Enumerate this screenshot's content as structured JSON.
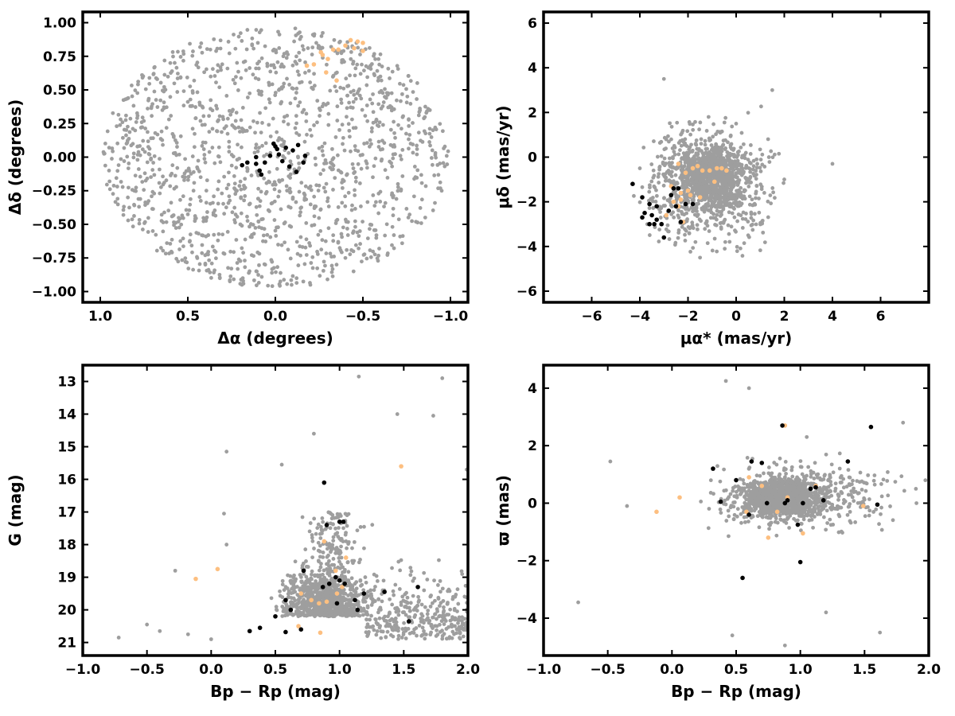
{
  "colors": {
    "background": "#9e9e9e",
    "field": "#fdbf80",
    "cluster": "#000000",
    "frame": "#000000"
  },
  "chart_data": [
    {
      "type": "scatter",
      "xlabel": "Δα (degrees)",
      "ylabel": "Δδ (degrees)",
      "xlim": [
        1.1,
        -1.1
      ],
      "ylim": [
        -1.08,
        1.08
      ],
      "xticks": [
        1.0,
        0.5,
        0.0,
        -0.5,
        -1.0
      ],
      "xtick_labels": [
        "1.0",
        "0.5",
        "0.0",
        "−0.5",
        "−1.0"
      ],
      "yticks": [
        1.0,
        0.75,
        0.5,
        0.25,
        0.0,
        -0.25,
        -0.5,
        -0.75,
        -1.0
      ],
      "ytick_labels": [
        "1.00",
        "0.75",
        "0.50",
        "0.25",
        "0.00",
        "−0.25",
        "−0.50",
        "−0.75",
        "−1.00"
      ],
      "series": [
        {
          "role": "background",
          "color": "#9e9e9e",
          "points": [
            [
              0.6,
              0.7
            ],
            [
              -0.3,
              0.4
            ],
            [
              0.2,
              -0.5
            ],
            [
              -0.7,
              -0.2
            ],
            [
              0.85,
              0.1
            ],
            [
              -0.9,
              0.2
            ],
            [
              0.4,
              -0.8
            ],
            [
              -0.4,
              -0.75
            ],
            [
              0.1,
              0.85
            ],
            [
              -0.6,
              0.6
            ],
            [
              0.7,
              -0.55
            ],
            [
              -0.2,
              -0.95
            ],
            [
              0.95,
              -0.1
            ],
            [
              -0.95,
              -0.25
            ],
            [
              0.3,
              0.3
            ],
            [
              -0.1,
              -0.3
            ]
          ]
        },
        {
          "role": "highlight",
          "color": "#fdbf80",
          "points": [
            [
              -0.43,
              0.87
            ],
            [
              -0.47,
              0.86
            ],
            [
              -0.5,
              0.85
            ],
            [
              -0.45,
              0.81
            ],
            [
              -0.5,
              0.79
            ],
            [
              -0.36,
              0.8
            ],
            [
              -0.33,
              0.8
            ],
            [
              -0.27,
              0.76
            ],
            [
              -0.3,
              0.73
            ],
            [
              -0.22,
              0.69
            ],
            [
              -0.18,
              0.68
            ],
            [
              -0.29,
              0.63
            ],
            [
              -0.35,
              0.57
            ],
            [
              -0.4,
              0.83
            ],
            [
              -0.26,
              0.78
            ]
          ]
        },
        {
          "role": "cluster",
          "color": "#000000",
          "points": [
            [
              0.19,
              -0.06
            ],
            [
              0.16,
              -0.04
            ],
            [
              0.11,
              0.0
            ],
            [
              0.11,
              -0.05
            ],
            [
              0.09,
              -0.1
            ],
            [
              0.08,
              -0.13
            ],
            [
              0.06,
              -0.04
            ],
            [
              0.01,
              0.1
            ],
            [
              0.0,
              0.08
            ],
            [
              -0.01,
              0.06
            ],
            [
              -0.02,
              0.02
            ],
            [
              -0.04,
              -0.03
            ],
            [
              -0.06,
              0.07
            ],
            [
              -0.08,
              -0.07
            ],
            [
              -0.1,
              0.05
            ],
            [
              -0.12,
              -0.11
            ],
            [
              -0.13,
              0.09
            ],
            [
              -0.16,
              -0.04
            ],
            [
              -0.17,
              0.01
            ],
            [
              0.03,
              0.01
            ]
          ]
        }
      ]
    },
    {
      "type": "scatter",
      "xlabel": "μα* (mas/yr)",
      "ylabel": "μδ (mas/yr)",
      "xlim": [
        -8,
        8
      ],
      "ylim": [
        -6.5,
        6.5
      ],
      "xticks": [
        -6,
        -4,
        -2,
        0,
        2,
        4,
        6
      ],
      "xtick_labels": [
        "−6",
        "−4",
        "−2",
        "0",
        "2",
        "4",
        "6"
      ],
      "yticks": [
        6,
        4,
        2,
        0,
        -2,
        -4,
        -6
      ],
      "ytick_labels": [
        "6",
        "4",
        "2",
        "0",
        "−2",
        "−4",
        "−6"
      ],
      "series": [
        {
          "role": "background",
          "color": "#9e9e9e",
          "points": [
            [
              -1.0,
              -0.5
            ],
            [
              -2.5,
              -2.0
            ],
            [
              0.5,
              -3.5
            ],
            [
              2.0,
              -1.0
            ],
            [
              -4.0,
              -0.5
            ],
            [
              -3.0,
              3.5
            ],
            [
              1.5,
              3.0
            ],
            [
              4.0,
              -0.3
            ],
            [
              -1.5,
              -4.5
            ],
            [
              0.0,
              1.5
            ]
          ]
        },
        {
          "role": "highlight",
          "color": "#fdbf80",
          "points": [
            [
              -2.4,
              -0.3
            ],
            [
              -2.1,
              -0.7
            ],
            [
              -1.8,
              -0.5
            ],
            [
              -1.6,
              -0.4
            ],
            [
              -1.4,
              -0.6
            ],
            [
              -1.1,
              -0.6
            ],
            [
              -0.8,
              -0.5
            ],
            [
              -0.6,
              -0.5
            ],
            [
              -0.4,
              -0.6
            ],
            [
              -2.3,
              -1.6
            ],
            [
              -2.0,
              -1.5
            ],
            [
              -1.9,
              -1.7
            ],
            [
              -2.3,
              -1.9
            ],
            [
              -2.4,
              -2.2
            ],
            [
              -2.6,
              -2.0
            ],
            [
              -2.7,
              -1.3
            ],
            [
              -2.2,
              -2.9
            ],
            [
              -2.9,
              -2.6
            ],
            [
              -1.5,
              -1.8
            ],
            [
              -0.9,
              -1.1
            ]
          ]
        },
        {
          "role": "cluster",
          "color": "#000000",
          "points": [
            [
              -4.3,
              -1.2
            ],
            [
              -3.9,
              -1.8
            ],
            [
              -3.6,
              -2.1
            ],
            [
              -3.3,
              -2.2
            ],
            [
              -3.8,
              -2.5
            ],
            [
              -3.5,
              -2.6
            ],
            [
              -3.3,
              -2.8
            ],
            [
              -3.6,
              -3.0
            ],
            [
              -3.4,
              -3.0
            ],
            [
              -3.1,
              -3.0
            ],
            [
              -3.0,
              -3.6
            ],
            [
              -2.8,
              -2.4
            ],
            [
              -2.7,
              -1.7
            ],
            [
              -2.6,
              -1.4
            ],
            [
              -2.5,
              -2.2
            ],
            [
              -2.4,
              -1.4
            ],
            [
              -2.3,
              -2.9
            ],
            [
              -2.1,
              -2.1
            ],
            [
              -1.8,
              -2.1
            ],
            [
              -3.9,
              -2.7
            ]
          ]
        }
      ]
    },
    {
      "type": "scatter",
      "xlabel": "Bp − Rp (mag)",
      "ylabel": "G (mag)",
      "xlim": [
        -1.0,
        2.0
      ],
      "ylim": [
        21.4,
        12.5
      ],
      "xticks": [
        -1.0,
        -0.5,
        0.0,
        0.5,
        1.0,
        1.5,
        2.0
      ],
      "xtick_labels": [
        "−1.0",
        "−0.5",
        "0.0",
        "0.5",
        "1.0",
        "1.5",
        "2.0"
      ],
      "yticks": [
        21,
        20,
        19,
        18,
        17,
        16,
        15,
        14,
        13
      ],
      "ytick_labels": [
        "21",
        "20",
        "19",
        "18",
        "17",
        "16",
        "15",
        "14",
        "13"
      ],
      "series": [
        {
          "role": "background",
          "color": "#9e9e9e",
          "points": [
            [
              -0.72,
              20.85
            ],
            [
              -0.5,
              20.45
            ],
            [
              -0.4,
              20.65
            ],
            [
              -0.18,
              20.75
            ],
            [
              0.0,
              20.9
            ],
            [
              -0.28,
              18.8
            ],
            [
              0.12,
              18.0
            ],
            [
              0.1,
              17.05
            ],
            [
              0.12,
              15.15
            ],
            [
              0.55,
              15.55
            ],
            [
              0.8,
              14.6
            ],
            [
              1.15,
              12.85
            ],
            [
              1.8,
              12.9
            ],
            [
              1.45,
              14.0
            ],
            [
              1.73,
              14.05
            ],
            [
              1.99,
              15.7
            ],
            [
              0.85,
              19.5
            ],
            [
              1.2,
              19.0
            ],
            [
              1.6,
              19.9
            ],
            [
              1.9,
              19.6
            ]
          ]
        },
        {
          "role": "highlight",
          "color": "#fdbf80",
          "points": [
            [
              -0.12,
              19.05
            ],
            [
              0.05,
              18.75
            ],
            [
              1.48,
              15.6
            ],
            [
              0.68,
              20.5
            ],
            [
              0.7,
              19.5
            ],
            [
              0.78,
              19.7
            ],
            [
              0.84,
              19.8
            ],
            [
              0.9,
              19.75
            ],
            [
              0.98,
              19.5
            ],
            [
              1.02,
              19.3
            ],
            [
              1.05,
              18.4
            ],
            [
              0.88,
              17.9
            ],
            [
              0.97,
              18.8
            ],
            [
              0.85,
              20.7
            ]
          ]
        },
        {
          "role": "cluster",
          "color": "#000000",
          "points": [
            [
              0.3,
              20.65
            ],
            [
              0.38,
              20.55
            ],
            [
              0.5,
              20.2
            ],
            [
              0.58,
              20.68
            ],
            [
              0.62,
              20.0
            ],
            [
              0.7,
              20.6
            ],
            [
              0.58,
              19.7
            ],
            [
              0.72,
              18.8
            ],
            [
              0.87,
              19.3
            ],
            [
              0.92,
              19.2
            ],
            [
              0.97,
              19.0
            ],
            [
              1.0,
              19.1
            ],
            [
              1.04,
              19.2
            ],
            [
              0.98,
              19.8
            ],
            [
              1.14,
              20.0
            ],
            [
              1.12,
              19.7
            ],
            [
              1.19,
              19.5
            ],
            [
              1.35,
              19.45
            ],
            [
              1.54,
              20.35
            ],
            [
              1.61,
              19.3
            ],
            [
              0.88,
              16.1
            ],
            [
              0.9,
              17.4
            ],
            [
              1.0,
              17.3
            ],
            [
              1.03,
              17.3
            ]
          ]
        }
      ]
    },
    {
      "type": "scatter",
      "xlabel": "Bp − Rp (mag)",
      "ylabel": "ϖ (mas)",
      "xlim": [
        -1.0,
        2.0
      ],
      "ylim": [
        -5.3,
        4.8
      ],
      "xticks": [
        -1.0,
        -0.5,
        0.0,
        0.5,
        1.0,
        1.5,
        2.0
      ],
      "xtick_labels": [
        "−1.0",
        "−0.5",
        "0.0",
        "0.5",
        "1.0",
        "1.5",
        "2.0"
      ],
      "yticks": [
        4,
        2,
        0,
        -2,
        -4
      ],
      "ytick_labels": [
        "4",
        "2",
        "0",
        "−2",
        "−4"
      ],
      "series": [
        {
          "role": "background",
          "color": "#9e9e9e",
          "points": [
            [
              -0.73,
              -3.45
            ],
            [
              -0.48,
              1.45
            ],
            [
              -0.35,
              -0.1
            ],
            [
              0.42,
              4.25
            ],
            [
              0.47,
              -4.6
            ],
            [
              0.6,
              4.0
            ],
            [
              0.88,
              -4.95
            ],
            [
              1.62,
              -4.5
            ],
            [
              1.2,
              -3.8
            ],
            [
              1.05,
              2.3
            ],
            [
              1.8,
              2.8
            ],
            [
              1.9,
              0.5
            ]
          ]
        },
        {
          "role": "highlight",
          "color": "#fdbf80",
          "points": [
            [
              -0.12,
              -0.3
            ],
            [
              0.06,
              0.2
            ],
            [
              0.88,
              2.7
            ],
            [
              1.02,
              -1.05
            ],
            [
              1.49,
              -0.1
            ],
            [
              0.6,
              0.9
            ],
            [
              0.75,
              -1.2
            ],
            [
              0.9,
              0.2
            ],
            [
              0.7,
              0.6
            ],
            [
              0.82,
              -0.3
            ],
            [
              0.58,
              -0.3
            ],
            [
              1.12,
              0.6
            ]
          ]
        },
        {
          "role": "cluster",
          "color": "#000000",
          "points": [
            [
              0.32,
              1.2
            ],
            [
              0.38,
              0.05
            ],
            [
              0.5,
              0.8
            ],
            [
              0.55,
              -2.6
            ],
            [
              0.62,
              1.45
            ],
            [
              0.6,
              -0.4
            ],
            [
              0.7,
              1.4
            ],
            [
              0.74,
              0.0
            ],
            [
              0.88,
              0.0
            ],
            [
              0.9,
              0.1
            ],
            [
              0.98,
              -0.75
            ],
            [
              1.0,
              -2.05
            ],
            [
              1.02,
              0.0
            ],
            [
              1.08,
              0.5
            ],
            [
              1.12,
              0.55
            ],
            [
              1.18,
              0.1
            ],
            [
              1.37,
              1.45
            ],
            [
              1.55,
              2.65
            ],
            [
              1.6,
              -0.05
            ],
            [
              0.86,
              2.7
            ]
          ]
        }
      ]
    }
  ]
}
